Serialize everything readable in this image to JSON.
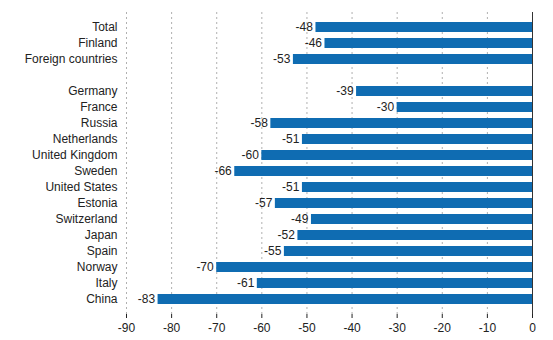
{
  "chart_data": {
    "type": "bar",
    "orientation": "horizontal",
    "categories": [
      "Total",
      "Finland",
      "Foreign countries",
      null,
      "Germany",
      "France",
      "Russia",
      "Netherlands",
      "United Kingdom",
      "Sweden",
      "United States",
      "Estonia",
      "Switzerland",
      "Japan",
      "Spain",
      "Norway",
      "Italy",
      "China"
    ],
    "values": [
      -48,
      -46,
      -53,
      null,
      -39,
      -30,
      -58,
      -51,
      -60,
      -66,
      -51,
      -57,
      -49,
      -52,
      -55,
      -70,
      -61,
      -83
    ],
    "color": "#0f6cb2",
    "xlim": [
      -90,
      0
    ],
    "xticks": [
      -90,
      -80,
      -70,
      -60,
      -50,
      -40,
      -30,
      -20,
      -10,
      0
    ],
    "grid": true,
    "data_labels": true
  }
}
